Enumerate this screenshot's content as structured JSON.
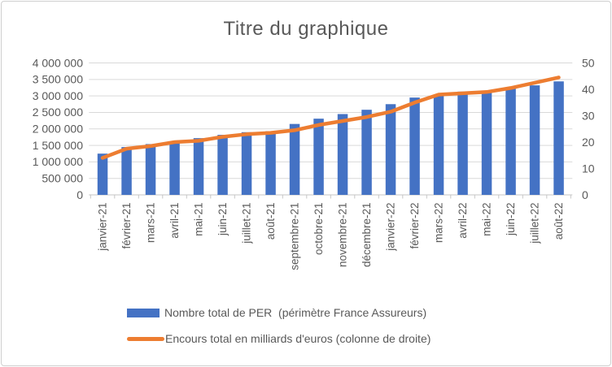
{
  "chart_data": {
    "type": "combo",
    "title": "Titre du graphique",
    "categories": [
      "janvier-21",
      "février-21",
      "mars-21",
      "avril-21",
      "mai-21",
      "juin-21",
      "juillet-21",
      "août-21",
      "septembre-21",
      "octobre-21",
      "novembre-21",
      "décembre-21",
      "janvier-22",
      "février-22",
      "mars-22",
      "avril-22",
      "mai-22",
      "juin-22",
      "juillet-22",
      "août-22"
    ],
    "series": [
      {
        "name": "Nombre total de PER  (périmètre France Assureurs)",
        "type": "bar",
        "axis": "left",
        "color": "#4472C4",
        "values": [
          1250000,
          1450000,
          1540000,
          1620000,
          1720000,
          1820000,
          1900000,
          1930000,
          2150000,
          2310000,
          2450000,
          2580000,
          2750000,
          2950000,
          3000000,
          3130000,
          3120000,
          3230000,
          3320000,
          3440000
        ]
      },
      {
        "name": "Encours total en milliards d'euros (colonne de droite)",
        "type": "line",
        "axis": "right",
        "color": "#ED7D31",
        "values": [
          14,
          17.5,
          18.5,
          20,
          20.5,
          22,
          23,
          23.5,
          24.5,
          26.5,
          28,
          29.5,
          31.5,
          35,
          38,
          38.5,
          39,
          40.5,
          42.5,
          44.5
        ]
      }
    ],
    "left_axis": {
      "min": 0,
      "max": 4000000,
      "tick_labels": [
        "0",
        "500 000",
        "1 000 000",
        "1 500 000",
        "2 000 000",
        "2 500 000",
        "3 000 000",
        "3 500 000",
        "4 000 000"
      ]
    },
    "right_axis": {
      "min": 0,
      "max": 50,
      "tick_labels": [
        "0",
        "10",
        "20",
        "30",
        "40",
        "50"
      ]
    },
    "grid": true,
    "legend_position": "bottom",
    "colors": {
      "gridline": "#D9D9D9",
      "axis": "#C6C6C6",
      "text": "#595959"
    }
  }
}
